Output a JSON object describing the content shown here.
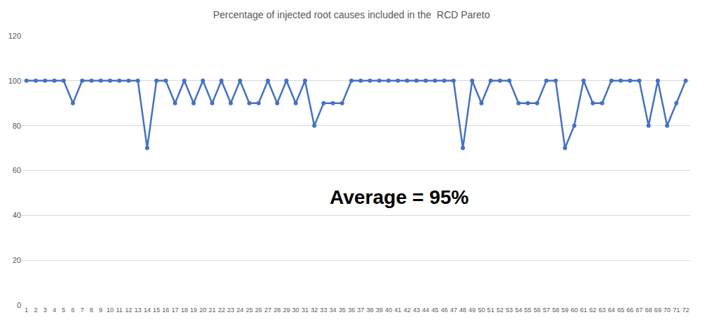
{
  "chart_data": {
    "type": "line",
    "title": "Percentage of injected root causes included in the  RCD Pareto",
    "categories": [
      "1",
      "2",
      "3",
      "4",
      "5",
      "6",
      "7",
      "8",
      "9",
      "10",
      "11",
      "12",
      "13",
      "14",
      "15",
      "16",
      "17",
      "18",
      "19",
      "20",
      "21",
      "22",
      "23",
      "24",
      "25",
      "26",
      "27",
      "28",
      "29",
      "30",
      "31",
      "32",
      "33",
      "34",
      "35",
      "36",
      "37",
      "38",
      "39",
      "40",
      "41",
      "42",
      "43",
      "44",
      "45",
      "46",
      "47",
      "48",
      "49",
      "50",
      "51",
      "52",
      "53",
      "54",
      "55",
      "56",
      "57",
      "58",
      "59",
      "60",
      "61",
      "62",
      "63",
      "64",
      "65",
      "66",
      "67",
      "68",
      "69",
      "70",
      "71",
      "72"
    ],
    "values": [
      100,
      100,
      100,
      100,
      100,
      90,
      100,
      100,
      100,
      100,
      100,
      100,
      100,
      70,
      100,
      100,
      90,
      100,
      90,
      100,
      90,
      100,
      90,
      100,
      90,
      90,
      100,
      90,
      100,
      90,
      100,
      80,
      90,
      90,
      90,
      100,
      100,
      100,
      100,
      100,
      100,
      100,
      100,
      100,
      100,
      100,
      100,
      70,
      100,
      90,
      100,
      100,
      100,
      90,
      90,
      90,
      100,
      100,
      70,
      80,
      100,
      90,
      90,
      100,
      100,
      100,
      100,
      80,
      100,
      80,
      90,
      100
    ],
    "color": "#4472c4",
    "marker": "circle",
    "line_style": "solid",
    "ylim": [
      0,
      120
    ],
    "yticks": [
      0,
      20,
      40,
      60,
      80,
      100,
      120
    ],
    "grid": true,
    "annotations": [
      "Average = 95%"
    ]
  }
}
